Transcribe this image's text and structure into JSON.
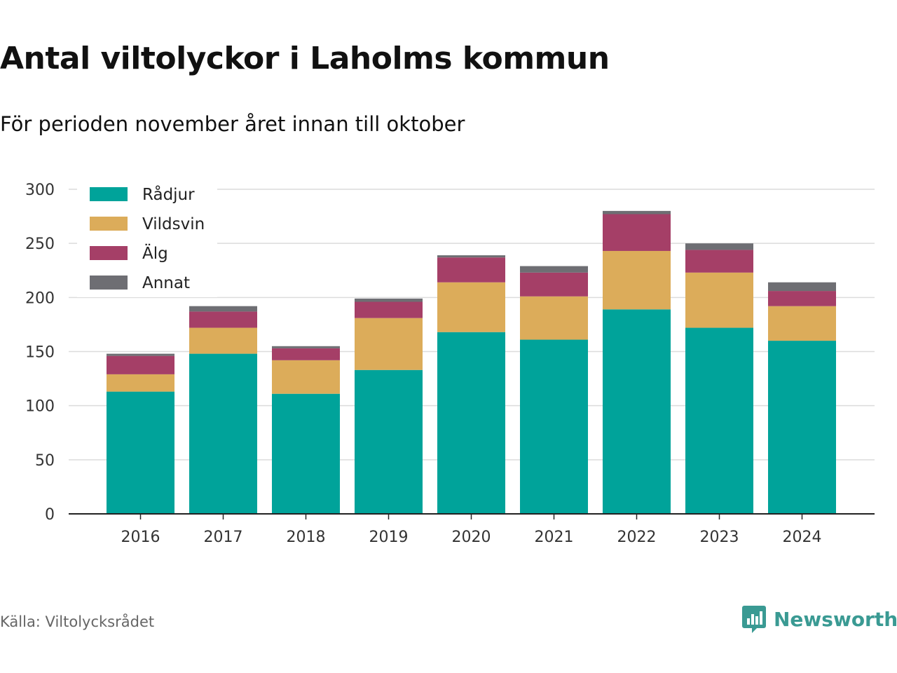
{
  "title": "Antal viltolyckor i Laholms kommun",
  "subtitle": "För perioden november året innan till oktober",
  "source": "Källa: Viltolycksrådet",
  "brand": {
    "name": "Newsworthy",
    "icon": "bar-chart-speech-bubble-icon",
    "color": "#3a9a93"
  },
  "chart_data": {
    "type": "bar",
    "stacked": true,
    "categories": [
      "2016",
      "2017",
      "2018",
      "2019",
      "2020",
      "2021",
      "2022",
      "2023",
      "2024"
    ],
    "series": [
      {
        "name": "Rådjur",
        "color": "#00a39a",
        "values": [
          113,
          148,
          111,
          133,
          168,
          161,
          189,
          172,
          160
        ]
      },
      {
        "name": "Vildsvin",
        "color": "#dcac5a",
        "values": [
          16,
          24,
          31,
          48,
          46,
          40,
          54,
          51,
          32
        ]
      },
      {
        "name": "Älg",
        "color": "#a53f67",
        "values": [
          17,
          15,
          11,
          15,
          23,
          22,
          34,
          21,
          14
        ]
      },
      {
        "name": "Annat",
        "color": "#6e6e73",
        "values": [
          2,
          5,
          2,
          3,
          2,
          6,
          3,
          6,
          8
        ]
      }
    ],
    "ylim": [
      0,
      300
    ],
    "yticks": [
      0,
      50,
      100,
      150,
      200,
      250,
      300
    ],
    "grid": true,
    "legend": "top-left"
  }
}
